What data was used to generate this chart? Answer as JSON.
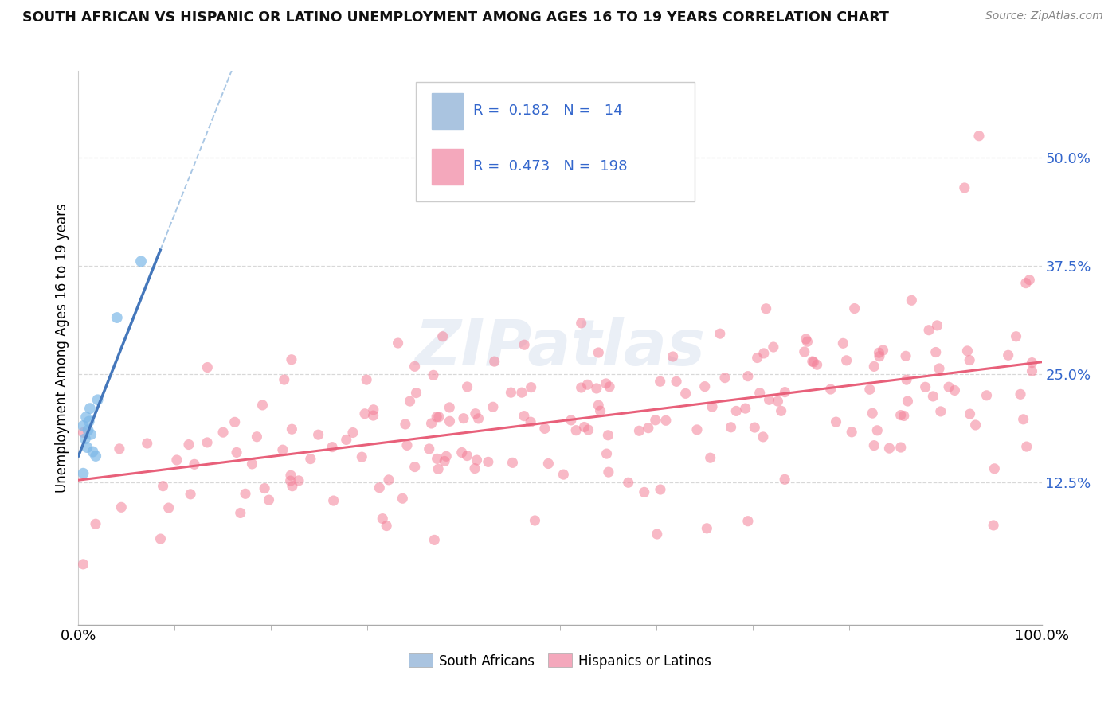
{
  "title": "SOUTH AFRICAN VS HISPANIC OR LATINO UNEMPLOYMENT AMONG AGES 16 TO 19 YEARS CORRELATION CHART",
  "source": "Source: ZipAtlas.com",
  "ylabel": "Unemployment Among Ages 16 to 19 years",
  "ytick_values": [
    0.125,
    0.25,
    0.375,
    0.5
  ],
  "ytick_labels": [
    "12.5%",
    "25.0%",
    "37.5%",
    "50.0%"
  ],
  "xlim": [
    0.0,
    1.0
  ],
  "ylim": [
    -0.04,
    0.6
  ],
  "south_african_color": "#7db8e8",
  "hispanic_color": "#f48098",
  "sa_legend_color": "#aac4e0",
  "hisp_legend_color": "#f4a8bc",
  "regression_blue_color": "#4477bb",
  "regression_pink_color": "#e8607a",
  "dashed_line_color": "#9abde0",
  "tick_color": "#3366cc",
  "background_color": "#ffffff",
  "watermark_color": "#ccd8ea",
  "legend_label_1": "R =  0.182   N =   14",
  "legend_label_2": "R =  0.473   N =  198",
  "legend_bottom_1": "South Africans",
  "legend_bottom_2": "Hispanics or Latinos"
}
